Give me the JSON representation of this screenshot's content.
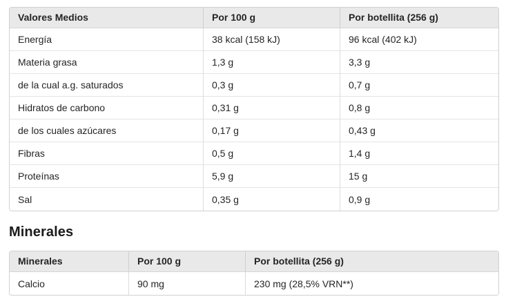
{
  "colors": {
    "header_background": "#e9e9e9",
    "table_border": "#d1d1d1",
    "row_divider": "#e4e4e4",
    "text": "#242424"
  },
  "nutrition_table": {
    "headers": [
      "Valores Medios",
      "Por 100 g",
      "Por botellita (256 g)"
    ],
    "rows": [
      [
        "Energía",
        "38 kcal (158 kJ)",
        "96 kcal (402 kJ)"
      ],
      [
        "Materia grasa",
        "1,3 g",
        "3,3 g"
      ],
      [
        "de la cual a.g. saturados",
        "0,3 g",
        "0,7 g"
      ],
      [
        "Hidratos de carbono",
        "0,31 g",
        "0,8 g"
      ],
      [
        "de los cuales azúcares",
        "0,17 g",
        "0,43 g"
      ],
      [
        "Fibras",
        "0,5 g",
        "1,4 g"
      ],
      [
        "Proteínas",
        "5,9 g",
        "15 g"
      ],
      [
        "Sal",
        "0,35 g",
        "0,9 g"
      ]
    ]
  },
  "minerals_section": {
    "heading": "Minerales",
    "table": {
      "headers": [
        "Minerales",
        "Por 100 g",
        "Por botellita (256 g)"
      ],
      "rows": [
        [
          "Calcio",
          "90 mg",
          "230 mg (28,5% VRN**)"
        ]
      ]
    }
  }
}
